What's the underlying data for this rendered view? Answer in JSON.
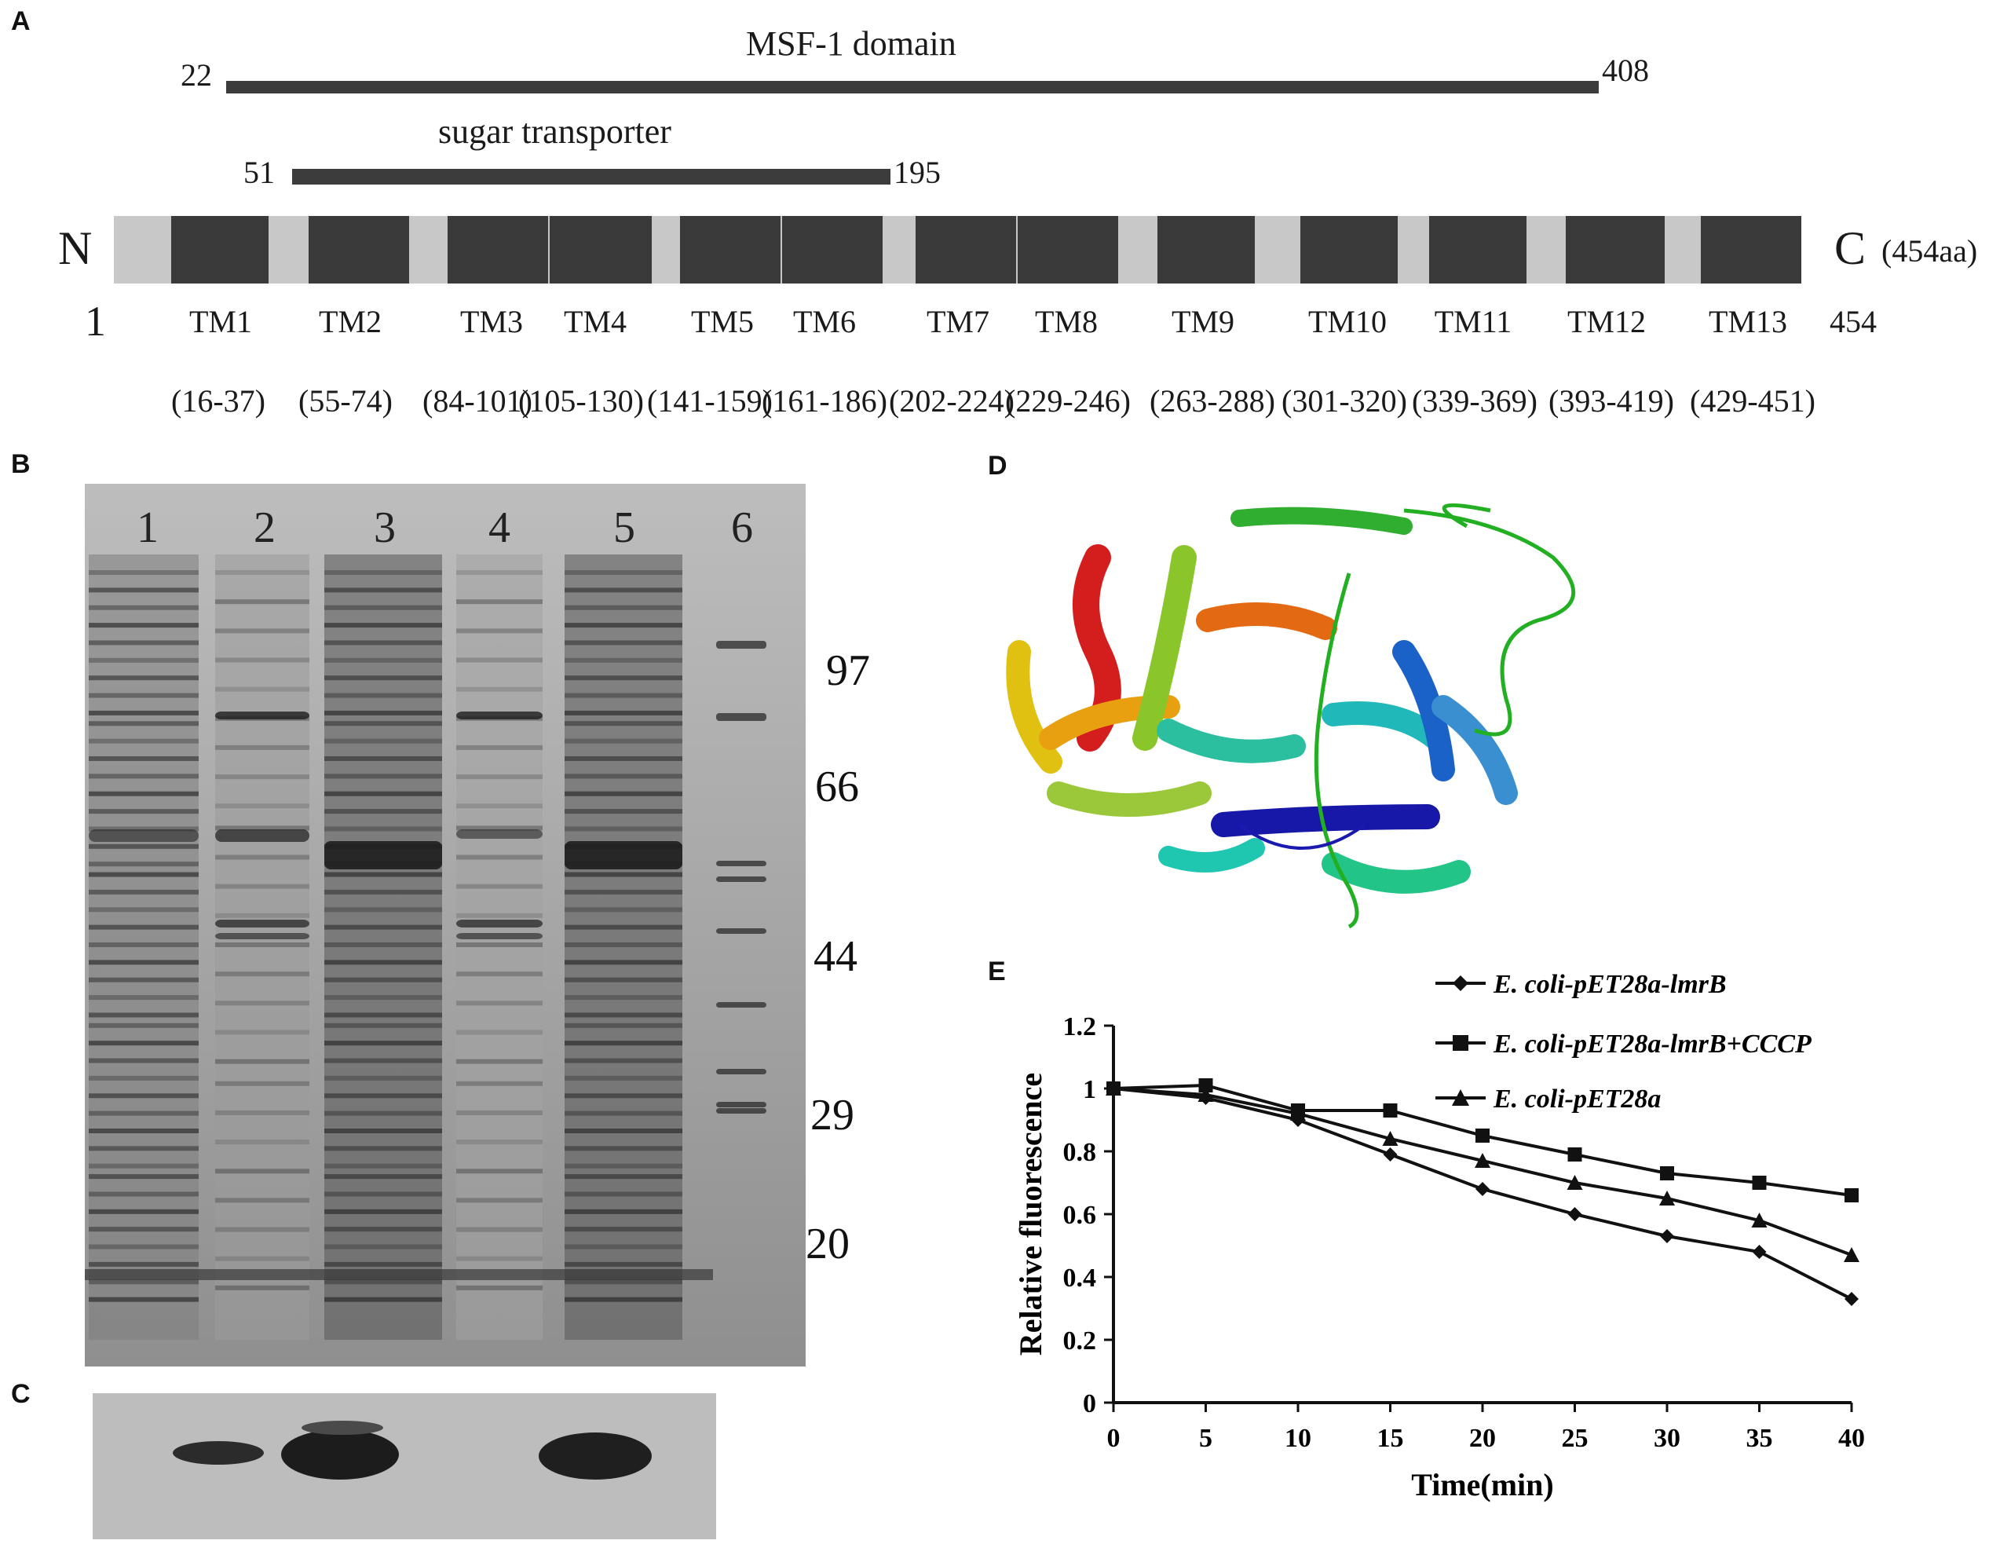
{
  "panels": {
    "a": "A",
    "b": "B",
    "c": "C",
    "d": "D",
    "e": "E"
  },
  "panel_a": {
    "msf_label": "MSF-1  domain",
    "msf_start": "22",
    "msf_end": "408",
    "sugar_label": "sugar  transporter",
    "sugar_start": "51",
    "sugar_end": "195",
    "n_term": "N",
    "c_term": "C",
    "length": "(454aa)",
    "pos_start": "1",
    "pos_end": "454",
    "tm": [
      {
        "name": "TM1",
        "range": "(16-37)"
      },
      {
        "name": "TM2",
        "range": "(55-74)"
      },
      {
        "name": "TM3",
        "range": "(84-101)"
      },
      {
        "name": "TM4",
        "range": "(105-130)"
      },
      {
        "name": "TM5",
        "range": "(141-159)"
      },
      {
        "name": "TM6",
        "range": "(161-186)"
      },
      {
        "name": "TM7",
        "range": "(202-224)"
      },
      {
        "name": "TM8",
        "range": "(229-246)"
      },
      {
        "name": "TM9",
        "range": "(263-288)"
      },
      {
        "name": "TM10",
        "range": "(301-320)"
      },
      {
        "name": "TM11",
        "range": "(339-369)"
      },
      {
        "name": "TM12",
        "range": "(393-419)"
      },
      {
        "name": "TM13",
        "range": "(429-451)"
      }
    ]
  },
  "panel_b": {
    "lanes": [
      "1",
      "2",
      "3",
      "4",
      "5",
      "6"
    ],
    "markers": [
      "97",
      "66",
      "44",
      "29",
      "20"
    ]
  },
  "colors": {
    "gel_bg": "#a9a9a9",
    "band": "#3a3a3a",
    "tm_box": "#3a3a3a",
    "tm_track": "#c8c8c8",
    "blot_bg": "#bdbdbd",
    "chart_line": "#111111"
  },
  "chart_data": {
    "type": "line",
    "xlabel": "Time(min)",
    "ylabel": "Relative fluorescence",
    "x": [
      0,
      5,
      10,
      15,
      20,
      25,
      30,
      35,
      40
    ],
    "xlim": [
      0,
      40
    ],
    "ylim": [
      0,
      1.2
    ],
    "xticks": [
      "0",
      "5",
      "10",
      "15",
      "20",
      "25",
      "30",
      "35",
      "40"
    ],
    "yticks": [
      "0",
      "0.2",
      "0.4",
      "0.6",
      "0.8",
      "1",
      "1.2"
    ],
    "legend_position": "top-right",
    "grid": false,
    "series": [
      {
        "name": "E. coli-pET28a-lmrB",
        "marker": "diamond",
        "values": [
          1.0,
          0.97,
          0.9,
          0.79,
          0.68,
          0.6,
          0.53,
          0.48,
          0.33
        ]
      },
      {
        "name": "E. coli-pET28a-lmrB+CCCP",
        "marker": "square",
        "values": [
          1.0,
          1.01,
          0.93,
          0.93,
          0.85,
          0.79,
          0.73,
          0.7,
          0.66
        ]
      },
      {
        "name": "E. coli-pET28a",
        "marker": "triangle",
        "values": [
          1.0,
          0.98,
          0.92,
          0.84,
          0.77,
          0.7,
          0.65,
          0.58,
          0.47
        ]
      }
    ]
  }
}
